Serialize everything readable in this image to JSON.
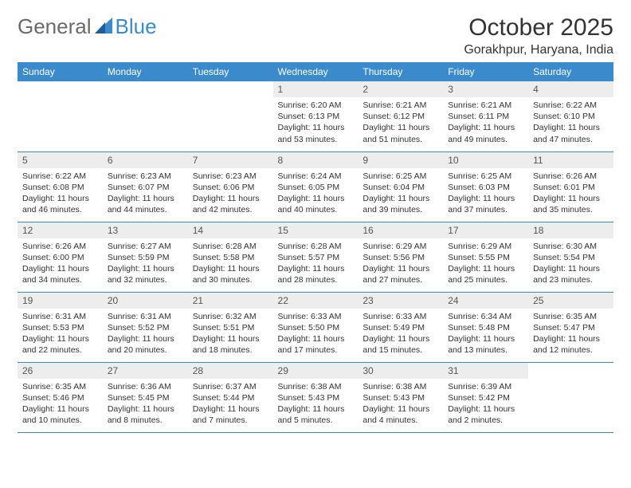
{
  "logo": {
    "part1": "General",
    "part2": "Blue"
  },
  "title": "October 2025",
  "location": "Gorakhpur, Haryana, India",
  "colors": {
    "header_bg": "#3b8bcc",
    "header_fg": "#ffffff",
    "daynum_bg": "#ededed",
    "border": "#3b8bcc",
    "logo_gray": "#6a6a6a",
    "logo_blue": "#3b8bcc"
  },
  "weekdays": [
    "Sunday",
    "Monday",
    "Tuesday",
    "Wednesday",
    "Thursday",
    "Friday",
    "Saturday"
  ],
  "weeks": [
    [
      null,
      null,
      null,
      {
        "n": "1",
        "sr": "Sunrise: 6:20 AM",
        "ss": "Sunset: 6:13 PM",
        "d1": "Daylight: 11 hours",
        "d2": "and 53 minutes."
      },
      {
        "n": "2",
        "sr": "Sunrise: 6:21 AM",
        "ss": "Sunset: 6:12 PM",
        "d1": "Daylight: 11 hours",
        "d2": "and 51 minutes."
      },
      {
        "n": "3",
        "sr": "Sunrise: 6:21 AM",
        "ss": "Sunset: 6:11 PM",
        "d1": "Daylight: 11 hours",
        "d2": "and 49 minutes."
      },
      {
        "n": "4",
        "sr": "Sunrise: 6:22 AM",
        "ss": "Sunset: 6:10 PM",
        "d1": "Daylight: 11 hours",
        "d2": "and 47 minutes."
      }
    ],
    [
      {
        "n": "5",
        "sr": "Sunrise: 6:22 AM",
        "ss": "Sunset: 6:08 PM",
        "d1": "Daylight: 11 hours",
        "d2": "and 46 minutes."
      },
      {
        "n": "6",
        "sr": "Sunrise: 6:23 AM",
        "ss": "Sunset: 6:07 PM",
        "d1": "Daylight: 11 hours",
        "d2": "and 44 minutes."
      },
      {
        "n": "7",
        "sr": "Sunrise: 6:23 AM",
        "ss": "Sunset: 6:06 PM",
        "d1": "Daylight: 11 hours",
        "d2": "and 42 minutes."
      },
      {
        "n": "8",
        "sr": "Sunrise: 6:24 AM",
        "ss": "Sunset: 6:05 PM",
        "d1": "Daylight: 11 hours",
        "d2": "and 40 minutes."
      },
      {
        "n": "9",
        "sr": "Sunrise: 6:25 AM",
        "ss": "Sunset: 6:04 PM",
        "d1": "Daylight: 11 hours",
        "d2": "and 39 minutes."
      },
      {
        "n": "10",
        "sr": "Sunrise: 6:25 AM",
        "ss": "Sunset: 6:03 PM",
        "d1": "Daylight: 11 hours",
        "d2": "and 37 minutes."
      },
      {
        "n": "11",
        "sr": "Sunrise: 6:26 AM",
        "ss": "Sunset: 6:01 PM",
        "d1": "Daylight: 11 hours",
        "d2": "and 35 minutes."
      }
    ],
    [
      {
        "n": "12",
        "sr": "Sunrise: 6:26 AM",
        "ss": "Sunset: 6:00 PM",
        "d1": "Daylight: 11 hours",
        "d2": "and 34 minutes."
      },
      {
        "n": "13",
        "sr": "Sunrise: 6:27 AM",
        "ss": "Sunset: 5:59 PM",
        "d1": "Daylight: 11 hours",
        "d2": "and 32 minutes."
      },
      {
        "n": "14",
        "sr": "Sunrise: 6:28 AM",
        "ss": "Sunset: 5:58 PM",
        "d1": "Daylight: 11 hours",
        "d2": "and 30 minutes."
      },
      {
        "n": "15",
        "sr": "Sunrise: 6:28 AM",
        "ss": "Sunset: 5:57 PM",
        "d1": "Daylight: 11 hours",
        "d2": "and 28 minutes."
      },
      {
        "n": "16",
        "sr": "Sunrise: 6:29 AM",
        "ss": "Sunset: 5:56 PM",
        "d1": "Daylight: 11 hours",
        "d2": "and 27 minutes."
      },
      {
        "n": "17",
        "sr": "Sunrise: 6:29 AM",
        "ss": "Sunset: 5:55 PM",
        "d1": "Daylight: 11 hours",
        "d2": "and 25 minutes."
      },
      {
        "n": "18",
        "sr": "Sunrise: 6:30 AM",
        "ss": "Sunset: 5:54 PM",
        "d1": "Daylight: 11 hours",
        "d2": "and 23 minutes."
      }
    ],
    [
      {
        "n": "19",
        "sr": "Sunrise: 6:31 AM",
        "ss": "Sunset: 5:53 PM",
        "d1": "Daylight: 11 hours",
        "d2": "and 22 minutes."
      },
      {
        "n": "20",
        "sr": "Sunrise: 6:31 AM",
        "ss": "Sunset: 5:52 PM",
        "d1": "Daylight: 11 hours",
        "d2": "and 20 minutes."
      },
      {
        "n": "21",
        "sr": "Sunrise: 6:32 AM",
        "ss": "Sunset: 5:51 PM",
        "d1": "Daylight: 11 hours",
        "d2": "and 18 minutes."
      },
      {
        "n": "22",
        "sr": "Sunrise: 6:33 AM",
        "ss": "Sunset: 5:50 PM",
        "d1": "Daylight: 11 hours",
        "d2": "and 17 minutes."
      },
      {
        "n": "23",
        "sr": "Sunrise: 6:33 AM",
        "ss": "Sunset: 5:49 PM",
        "d1": "Daylight: 11 hours",
        "d2": "and 15 minutes."
      },
      {
        "n": "24",
        "sr": "Sunrise: 6:34 AM",
        "ss": "Sunset: 5:48 PM",
        "d1": "Daylight: 11 hours",
        "d2": "and 13 minutes."
      },
      {
        "n": "25",
        "sr": "Sunrise: 6:35 AM",
        "ss": "Sunset: 5:47 PM",
        "d1": "Daylight: 11 hours",
        "d2": "and 12 minutes."
      }
    ],
    [
      {
        "n": "26",
        "sr": "Sunrise: 6:35 AM",
        "ss": "Sunset: 5:46 PM",
        "d1": "Daylight: 11 hours",
        "d2": "and 10 minutes."
      },
      {
        "n": "27",
        "sr": "Sunrise: 6:36 AM",
        "ss": "Sunset: 5:45 PM",
        "d1": "Daylight: 11 hours",
        "d2": "and 8 minutes."
      },
      {
        "n": "28",
        "sr": "Sunrise: 6:37 AM",
        "ss": "Sunset: 5:44 PM",
        "d1": "Daylight: 11 hours",
        "d2": "and 7 minutes."
      },
      {
        "n": "29",
        "sr": "Sunrise: 6:38 AM",
        "ss": "Sunset: 5:43 PM",
        "d1": "Daylight: 11 hours",
        "d2": "and 5 minutes."
      },
      {
        "n": "30",
        "sr": "Sunrise: 6:38 AM",
        "ss": "Sunset: 5:43 PM",
        "d1": "Daylight: 11 hours",
        "d2": "and 4 minutes."
      },
      {
        "n": "31",
        "sr": "Sunrise: 6:39 AM",
        "ss": "Sunset: 5:42 PM",
        "d1": "Daylight: 11 hours",
        "d2": "and 2 minutes."
      },
      null
    ]
  ]
}
